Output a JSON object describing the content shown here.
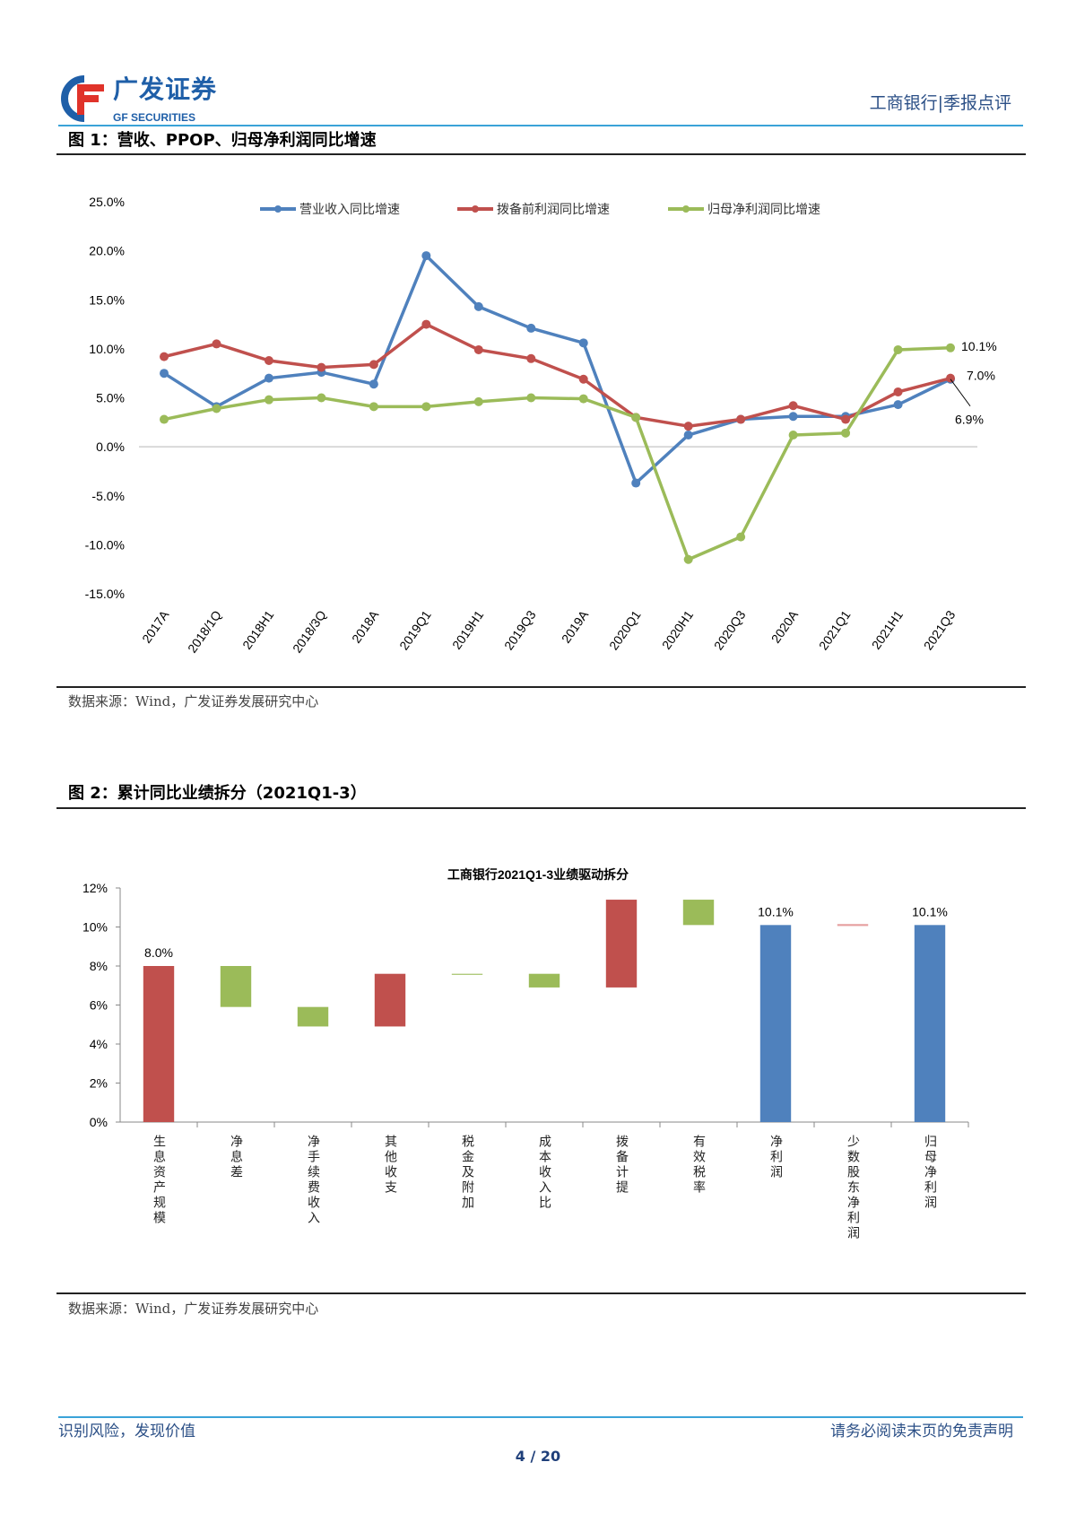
{
  "header": {
    "brand_cn": "广发证券",
    "brand_en": "GF SECURITIES",
    "right_title": "工商银行|季报点评"
  },
  "figure1": {
    "title": "图 1：营收、PPOP、归母净利润同比增速",
    "source": "数据来源：Wind，广发证券发展研究中心",
    "chart_data": {
      "type": "line",
      "categories": [
        "2017A",
        "2018/1Q",
        "2018H1",
        "2018/3Q",
        "2018A",
        "2019Q1",
        "2019H1",
        "2019Q3",
        "2019A",
        "2020Q1",
        "2020H1",
        "2020Q3",
        "2020A",
        "2021Q1",
        "2021H1",
        "2021Q3"
      ],
      "ylim": [
        -15,
        25
      ],
      "yticks": [
        "25.0%",
        "20.0%",
        "15.0%",
        "10.0%",
        "5.0%",
        "0.0%",
        "-5.0%",
        "-10.0%",
        "-15.0%"
      ],
      "legend_position": "top",
      "series": [
        {
          "name": "营业收入同比增速",
          "color": "#4f81bd",
          "values": [
            7.5,
            4.1,
            7.0,
            7.6,
            6.4,
            19.5,
            14.3,
            12.1,
            10.6,
            -3.7,
            1.2,
            2.8,
            3.1,
            3.1,
            4.3,
            6.9
          ]
        },
        {
          "name": "拨备前利润同比增速",
          "color": "#c0504d",
          "values": [
            9.2,
            10.5,
            8.8,
            8.1,
            8.4,
            12.5,
            9.9,
            9.0,
            6.9,
            3.0,
            2.1,
            2.8,
            4.2,
            2.8,
            5.6,
            7.0
          ]
        },
        {
          "name": "归母净利润同比增速",
          "color": "#9bbb59",
          "values": [
            2.8,
            3.9,
            4.8,
            5.0,
            4.1,
            4.1,
            4.6,
            5.0,
            4.9,
            3.0,
            -11.5,
            -9.2,
            1.2,
            1.4,
            9.9,
            10.1
          ]
        }
      ],
      "annotations": [
        "10.1%",
        "7.0%",
        "6.9%"
      ]
    }
  },
  "figure2": {
    "title": "图 2：累计同比业绩拆分（2021Q1-3）",
    "source": "数据来源：Wind，广发证券发展研究中心",
    "chart_data": {
      "type": "bar",
      "subtype": "waterfall",
      "title": "工商银行2021Q1-3业绩驱动拆分",
      "ylim": [
        0,
        12
      ],
      "yticks": [
        "12%",
        "10%",
        "8%",
        "6%",
        "4%",
        "2%",
        "0%"
      ],
      "categories": [
        "生息资产规模",
        "净息差",
        "净手续费收入",
        "其他收支",
        "税金及附加",
        "成本收入比",
        "拨备计提",
        "有效税率",
        "净利润",
        "少数股东净利润",
        "归母净利润"
      ],
      "bars": [
        {
          "from": 0,
          "to": 8.0,
          "color": "#c0504d",
          "label": "8.0%"
        },
        {
          "from": 8.0,
          "to": 5.9,
          "color": "#9bbb59"
        },
        {
          "from": 5.9,
          "to": 4.9,
          "color": "#9bbb59"
        },
        {
          "from": 4.9,
          "to": 7.6,
          "color": "#c0504d"
        },
        {
          "from": 7.6,
          "to": 7.55,
          "color": "#9bbb59"
        },
        {
          "from": 7.6,
          "to": 6.9,
          "color": "#9bbb59"
        },
        {
          "from": 6.9,
          "to": 11.4,
          "color": "#c0504d"
        },
        {
          "from": 11.4,
          "to": 10.1,
          "color": "#9bbb59"
        },
        {
          "from": 0,
          "to": 10.1,
          "color": "#4f81bd",
          "label": "10.1%"
        },
        {
          "from": 10.15,
          "to": 10.05,
          "color": "#e6a0a0"
        },
        {
          "from": 0,
          "to": 10.1,
          "color": "#4f81bd",
          "label": "10.1%"
        }
      ]
    }
  },
  "footer": {
    "left": "识别风险，发现价值",
    "right": "请务必阅读末页的免责声明",
    "page": "4 / 20"
  }
}
